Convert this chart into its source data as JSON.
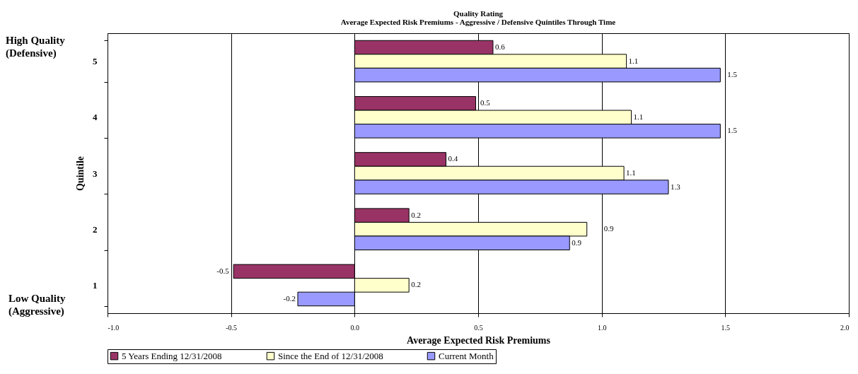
{
  "chart_data": {
    "type": "bar",
    "orientation": "horizontal",
    "title": "Quality Rating",
    "subtitle": "Average Expected Risk Premiums - Aggressive / Defensive Quintiles Through Time",
    "xlabel": "Average Expected Risk Premiums",
    "ylabel": "Quintile",
    "categories": [
      "5",
      "4",
      "3",
      "2",
      "1"
    ],
    "series": [
      {
        "name": "5 Years Ending 12/31/2008",
        "color": "#993366",
        "values": [
          0.56,
          0.49,
          0.37,
          0.22,
          -0.49
        ],
        "value_labels": [
          "0.6",
          "0.5",
          "0.4",
          "0.2",
          "-0.5"
        ]
      },
      {
        "name": "Since the End of 12/31/2008",
        "color": "#ffffcc",
        "values": [
          1.1,
          1.12,
          1.09,
          0.94,
          0.22
        ],
        "value_labels": [
          "1.1",
          "1.1",
          "1.1",
          "0.9",
          "0.2"
        ]
      },
      {
        "name": "Current Month",
        "color": "#9999ff",
        "values": [
          1.48,
          1.48,
          1.27,
          0.87,
          -0.23
        ],
        "value_labels": [
          "1.5",
          "1.5",
          "1.3",
          "0.9",
          "-0.2"
        ]
      }
    ],
    "xlim": [
      -1.0,
      2.0
    ],
    "xticks": [
      {
        "value": -1,
        "label": "-1.0"
      },
      {
        "value": -0.5,
        "label": "-0.5"
      },
      {
        "value": 0,
        "label": "0.0"
      },
      {
        "value": 0.5,
        "label": "0.5"
      },
      {
        "value": 1,
        "label": "1.0"
      },
      {
        "value": 1.5,
        "label": "1.5"
      },
      {
        "value": 2,
        "label": "2.0"
      }
    ],
    "grid": "x",
    "legend": "bottom",
    "annotations": [
      "High Quality (Defensive)",
      "Low Quality (Aggressive)"
    ]
  }
}
